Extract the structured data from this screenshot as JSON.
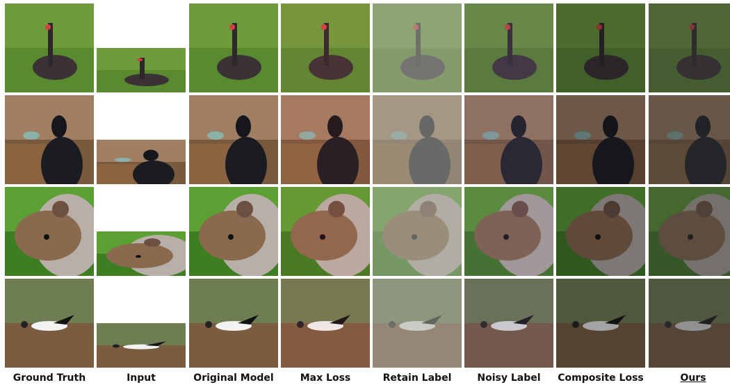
{
  "figure": {
    "columns": [
      "Ground Truth",
      "Input",
      "Original Model",
      "Max Loss",
      "Retain Label",
      "Noisy Label",
      "Composite Loss",
      "Ours"
    ]
  }
}
